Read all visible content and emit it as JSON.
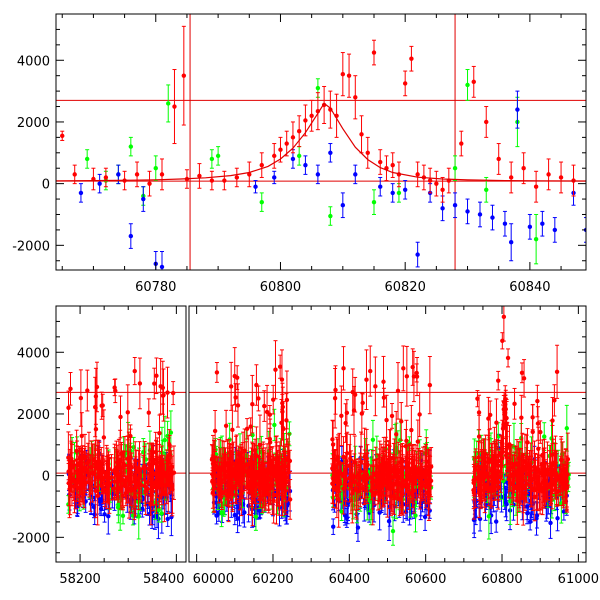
{
  "chart_data": [
    {
      "type": "scatter",
      "panel": "top",
      "xlim": [
        60764,
        60849
      ],
      "ylim": [
        -2800,
        5500
      ],
      "xticks": [
        60780,
        60800,
        60820,
        60840
      ],
      "yticks": [
        -2000,
        0,
        2000,
        4000
      ],
      "xlabel": "",
      "ylabel": "",
      "reference_lines": {
        "horizontal": [
          80,
          2700
        ],
        "vertical": [
          60785.5,
          60828
        ]
      },
      "model_curve": {
        "description": "single-lens microlensing fit peaking near 60807",
        "t0": 60807.0,
        "peak": 2620,
        "baseline": 80,
        "x": [
          60764,
          60770,
          60776,
          60780,
          60784,
          60788,
          60792,
          60795,
          60798,
          60800,
          60802,
          60804,
          60806,
          60807,
          60808,
          60810,
          60812,
          60814,
          60816,
          60818,
          60822,
          60826,
          60830,
          60836,
          60842,
          60849
        ],
        "y": [
          90,
          100,
          110,
          125,
          150,
          190,
          260,
          360,
          560,
          800,
          1150,
          1650,
          2280,
          2600,
          2450,
          1780,
          1180,
          780,
          520,
          360,
          210,
          150,
          120,
          100,
          90,
          85
        ]
      },
      "series": [
        {
          "name": "red",
          "color": "#ff0000",
          "x": [
            60765,
            60767,
            60770,
            60772,
            60775,
            60777,
            60779,
            60781,
            60783,
            60784.5,
            60785,
            60787,
            60789,
            60791,
            60793,
            60795,
            60797,
            60799,
            60800,
            60801,
            60802,
            60803,
            60804,
            60805,
            60806,
            60807,
            60808,
            60809,
            60810,
            60811,
            60812,
            60813,
            60814,
            60815,
            60816,
            60817,
            60818,
            60819,
            60820,
            60821,
            60822,
            60823,
            60824,
            60825,
            60826,
            60827,
            60829,
            60831,
            60833,
            60835,
            60837,
            60839,
            60841,
            60843,
            60845,
            60847
          ],
          "y": [
            1550,
            300,
            150,
            200,
            100,
            300,
            0,
            300,
            2500,
            3500,
            150,
            250,
            100,
            100,
            200,
            300,
            600,
            900,
            1100,
            1300,
            1500,
            1700,
            2050,
            2200,
            2350,
            2550,
            2400,
            2200,
            3550,
            3500,
            2800,
            1600,
            1000,
            4250,
            700,
            500,
            600,
            300,
            3250,
            4050,
            300,
            200,
            100,
            0,
            -200,
            100,
            1300,
            3300,
            2000,
            800,
            200,
            500,
            -100,
            300,
            200,
            100
          ],
          "err": [
            150,
            300,
            350,
            300,
            300,
            400,
            400,
            500,
            1200,
            1600,
            300,
            400,
            300,
            300,
            300,
            400,
            400,
            400,
            400,
            400,
            500,
            500,
            500,
            500,
            600,
            600,
            600,
            700,
            700,
            700,
            700,
            600,
            500,
            400,
            400,
            400,
            400,
            400,
            400,
            400,
            400,
            400,
            400,
            400,
            400,
            400,
            400,
            500,
            500,
            500,
            500,
            500,
            500,
            500,
            500,
            500
          ]
        },
        {
          "name": "green",
          "color": "#00ff00",
          "x": [
            60769,
            60772,
            60774,
            60776,
            60778,
            60780,
            60782,
            60789,
            60790,
            60797,
            60803,
            60806,
            60808,
            60815,
            60819,
            60828,
            60830,
            60833,
            60838,
            60841
          ],
          "y": [
            800,
            100,
            300,
            1200,
            -400,
            500,
            2600,
            800,
            900,
            -600,
            900,
            3100,
            -1050,
            -600,
            -300,
            500,
            3200,
            -200,
            2000,
            -1800
          ],
          "err": [
            300,
            300,
            300,
            300,
            300,
            400,
            600,
            300,
            300,
            300,
            300,
            300,
            300,
            400,
            300,
            400,
            500,
            400,
            800,
            800
          ]
        },
        {
          "name": "blue",
          "color": "#0000ff",
          "x": [
            60768,
            60771,
            60774,
            60776,
            60778,
            60780,
            60781,
            60796,
            60799,
            60802,
            60804,
            60806,
            60808,
            60810,
            60812,
            60816,
            60818,
            60820,
            60822,
            60824,
            60826,
            60828,
            60830,
            60832,
            60834,
            60836,
            60837,
            60838,
            60840,
            60842,
            60844,
            60847,
            60849
          ],
          "y": [
            -300,
            0,
            300,
            -1700,
            -500,
            -2600,
            -2700,
            -100,
            200,
            800,
            600,
            300,
            1000,
            -700,
            300,
            -100,
            -300,
            -200,
            -2300,
            -300,
            -800,
            -700,
            -900,
            -1000,
            -1100,
            -1300,
            -1900,
            2400,
            -1400,
            -1300,
            -1500,
            -300,
            -1500
          ],
          "err": [
            300,
            300,
            300,
            400,
            400,
            400,
            500,
            200,
            200,
            300,
            300,
            300,
            300,
            400,
            300,
            300,
            300,
            300,
            400,
            300,
            400,
            400,
            400,
            400,
            400,
            400,
            600,
            600,
            400,
            400,
            400,
            400,
            400
          ]
        }
      ]
    },
    {
      "type": "scatter",
      "panel": "bottom",
      "broken_axis": true,
      "segments": [
        {
          "xlim": [
            58150,
            58420
          ]
        },
        {
          "xlim": [
            59980,
            61020
          ]
        }
      ],
      "ylim": [
        -2800,
        5500
      ],
      "xticks": [
        58200,
        58400,
        60000,
        60200,
        60400,
        60600,
        60800,
        61000
      ],
      "yticks": [
        -2000,
        0,
        2000,
        4000
      ],
      "xlabel": "",
      "ylabel": "",
      "reference_lines": {
        "horizontal": [
          80,
          2700
        ]
      },
      "observing_seasons": [
        {
          "x0": 58175,
          "x1": 58395
        },
        {
          "x0": 60040,
          "x1": 60245
        },
        {
          "x0": 60355,
          "x1": 60615
        },
        {
          "x0": 60725,
          "x1": 60975
        }
      ],
      "event": {
        "x": 60807,
        "peak": 2700
      },
      "series_colors": {
        "red": "#ff0000",
        "green": "#00ff00",
        "blue": "#0000ff"
      }
    }
  ]
}
